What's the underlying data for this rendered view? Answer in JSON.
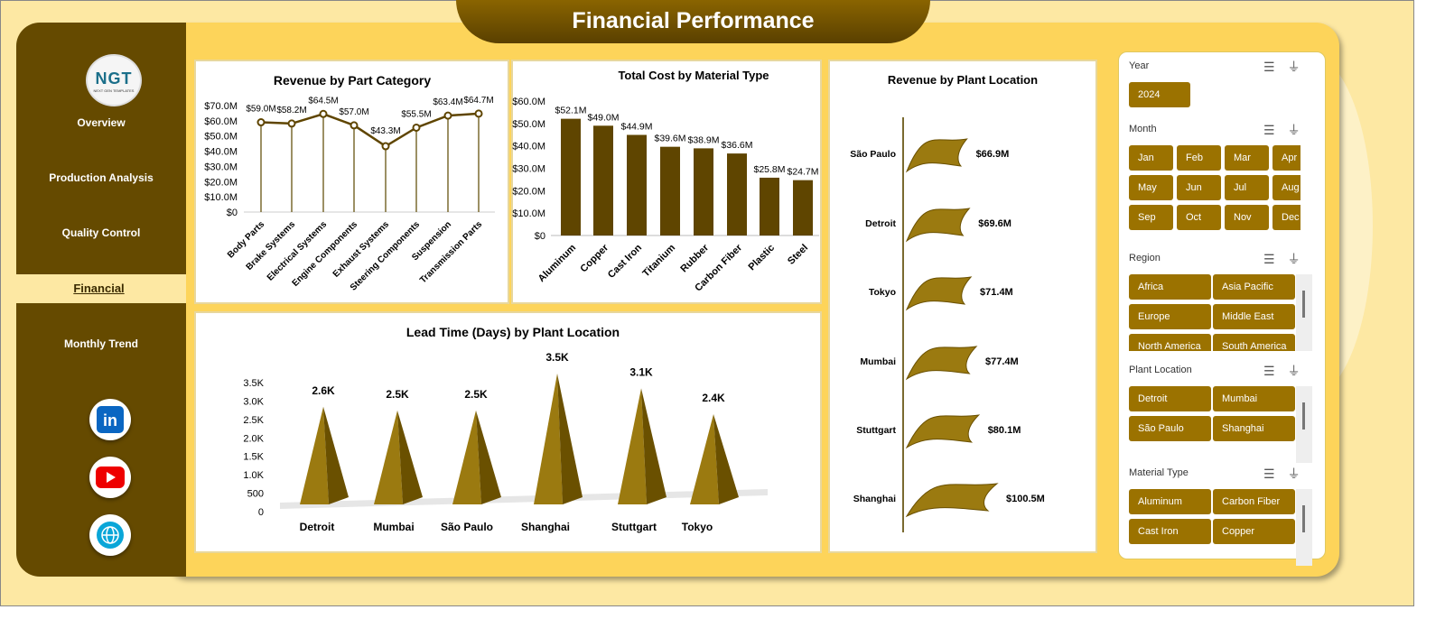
{
  "header": {
    "title": "Financial Performance"
  },
  "logo": {
    "text": "NGT",
    "subtitle": "NEXT GEN TEMPLATES"
  },
  "sidebar": {
    "items": [
      {
        "label": "Overview"
      },
      {
        "label": "Production Analysis"
      },
      {
        "label": "Quality Control"
      },
      {
        "label": "Financial",
        "active": true
      },
      {
        "label": "Monthly Trend"
      }
    ],
    "social": [
      "linkedin-icon",
      "youtube-icon",
      "globe-icon"
    ]
  },
  "colors": {
    "sidebar": "#654a00",
    "accent": "#9b7200",
    "panel_bg": "#fdd45a",
    "chart": "#5f4500"
  },
  "slicers": {
    "year": {
      "title": "Year",
      "items": [
        "2024"
      ]
    },
    "month": {
      "title": "Month",
      "items": [
        "Jan",
        "Feb",
        "Mar",
        "Apr",
        "May",
        "Jun",
        "Jul",
        "Aug",
        "Sep",
        "Oct",
        "Nov",
        "Dec"
      ]
    },
    "region": {
      "title": "Region",
      "items": [
        "Africa",
        "Asia Pacific",
        "Europe",
        "Middle East",
        "North America",
        "South America"
      ]
    },
    "plant": {
      "title": "Plant Location",
      "items": [
        "Detroit",
        "Mumbai",
        "São Paulo",
        "Shanghai"
      ]
    },
    "material": {
      "title": "Material Type",
      "items": [
        "Aluminum",
        "Carbon Fiber",
        "Cast Iron",
        "Copper"
      ]
    }
  },
  "chart_data": [
    {
      "type": "line",
      "title": "Revenue by Part Category",
      "categories": [
        "Body Parts",
        "Brake Systems",
        "Electrical Systems",
        "Engine Components",
        "Exhaust Systems",
        "Steering Components",
        "Suspension",
        "Transmission Parts"
      ],
      "values": [
        59.0,
        58.2,
        64.5,
        57.0,
        43.3,
        55.5,
        63.4,
        64.7
      ],
      "labels": [
        "$59.0M",
        "$58.2M",
        "$64.5M",
        "$57.0M",
        "$43.3M",
        "$55.5M",
        "$63.4M",
        "$64.7M"
      ],
      "yticks": [
        "$0",
        "$10.0M",
        "$20.0M",
        "$30.0M",
        "$40.0M",
        "$50.0M",
        "$60.0M",
        "$70.0M"
      ],
      "ylim": [
        0,
        70
      ]
    },
    {
      "type": "bar",
      "title": "Total Cost by Material Type",
      "categories": [
        "Aluminum",
        "Copper",
        "Cast Iron",
        "Titanium",
        "Rubber",
        "Carbon Fiber",
        "Plastic",
        "Steel"
      ],
      "values": [
        52.1,
        49.0,
        44.9,
        39.6,
        38.9,
        36.6,
        25.8,
        24.7
      ],
      "labels": [
        "$52.1M",
        "$49.0M",
        "$44.9M",
        "$39.6M",
        "$38.9M",
        "$36.6M",
        "$25.8M",
        "$24.7M"
      ],
      "yticks": [
        "$0",
        "$10.0M",
        "$20.0M",
        "$30.0M",
        "$40.0M",
        "$50.0M",
        "$60.0M"
      ],
      "ylim": [
        0,
        60
      ]
    },
    {
      "type": "bar",
      "title": "Lead Time (Days) by Plant Location",
      "categories": [
        "Detroit",
        "Mumbai",
        "São Paulo",
        "Shanghai",
        "Stuttgart",
        "Tokyo"
      ],
      "values": [
        2.6,
        2.5,
        2.5,
        3.5,
        3.1,
        2.4
      ],
      "labels": [
        "2.6K",
        "2.5K",
        "2.5K",
        "3.5K",
        "3.1K",
        "2.4K"
      ],
      "yticks": [
        "0",
        "500",
        "1.0K",
        "1.5K",
        "2.0K",
        "2.5K",
        "3.0K",
        "3.5K"
      ],
      "ylim": [
        0,
        3.5
      ]
    },
    {
      "type": "bar",
      "title": "Revenue  by Plant Location",
      "categories": [
        "São Paulo",
        "Detroit",
        "Tokyo",
        "Mumbai",
        "Stuttgart",
        "Shanghai"
      ],
      "values": [
        66.9,
        69.6,
        71.4,
        77.4,
        80.1,
        100.5
      ],
      "labels": [
        "$66.9M",
        "$69.6M",
        "$71.4M",
        "$77.4M",
        "$80.1M",
        "$100.5M"
      ]
    }
  ]
}
